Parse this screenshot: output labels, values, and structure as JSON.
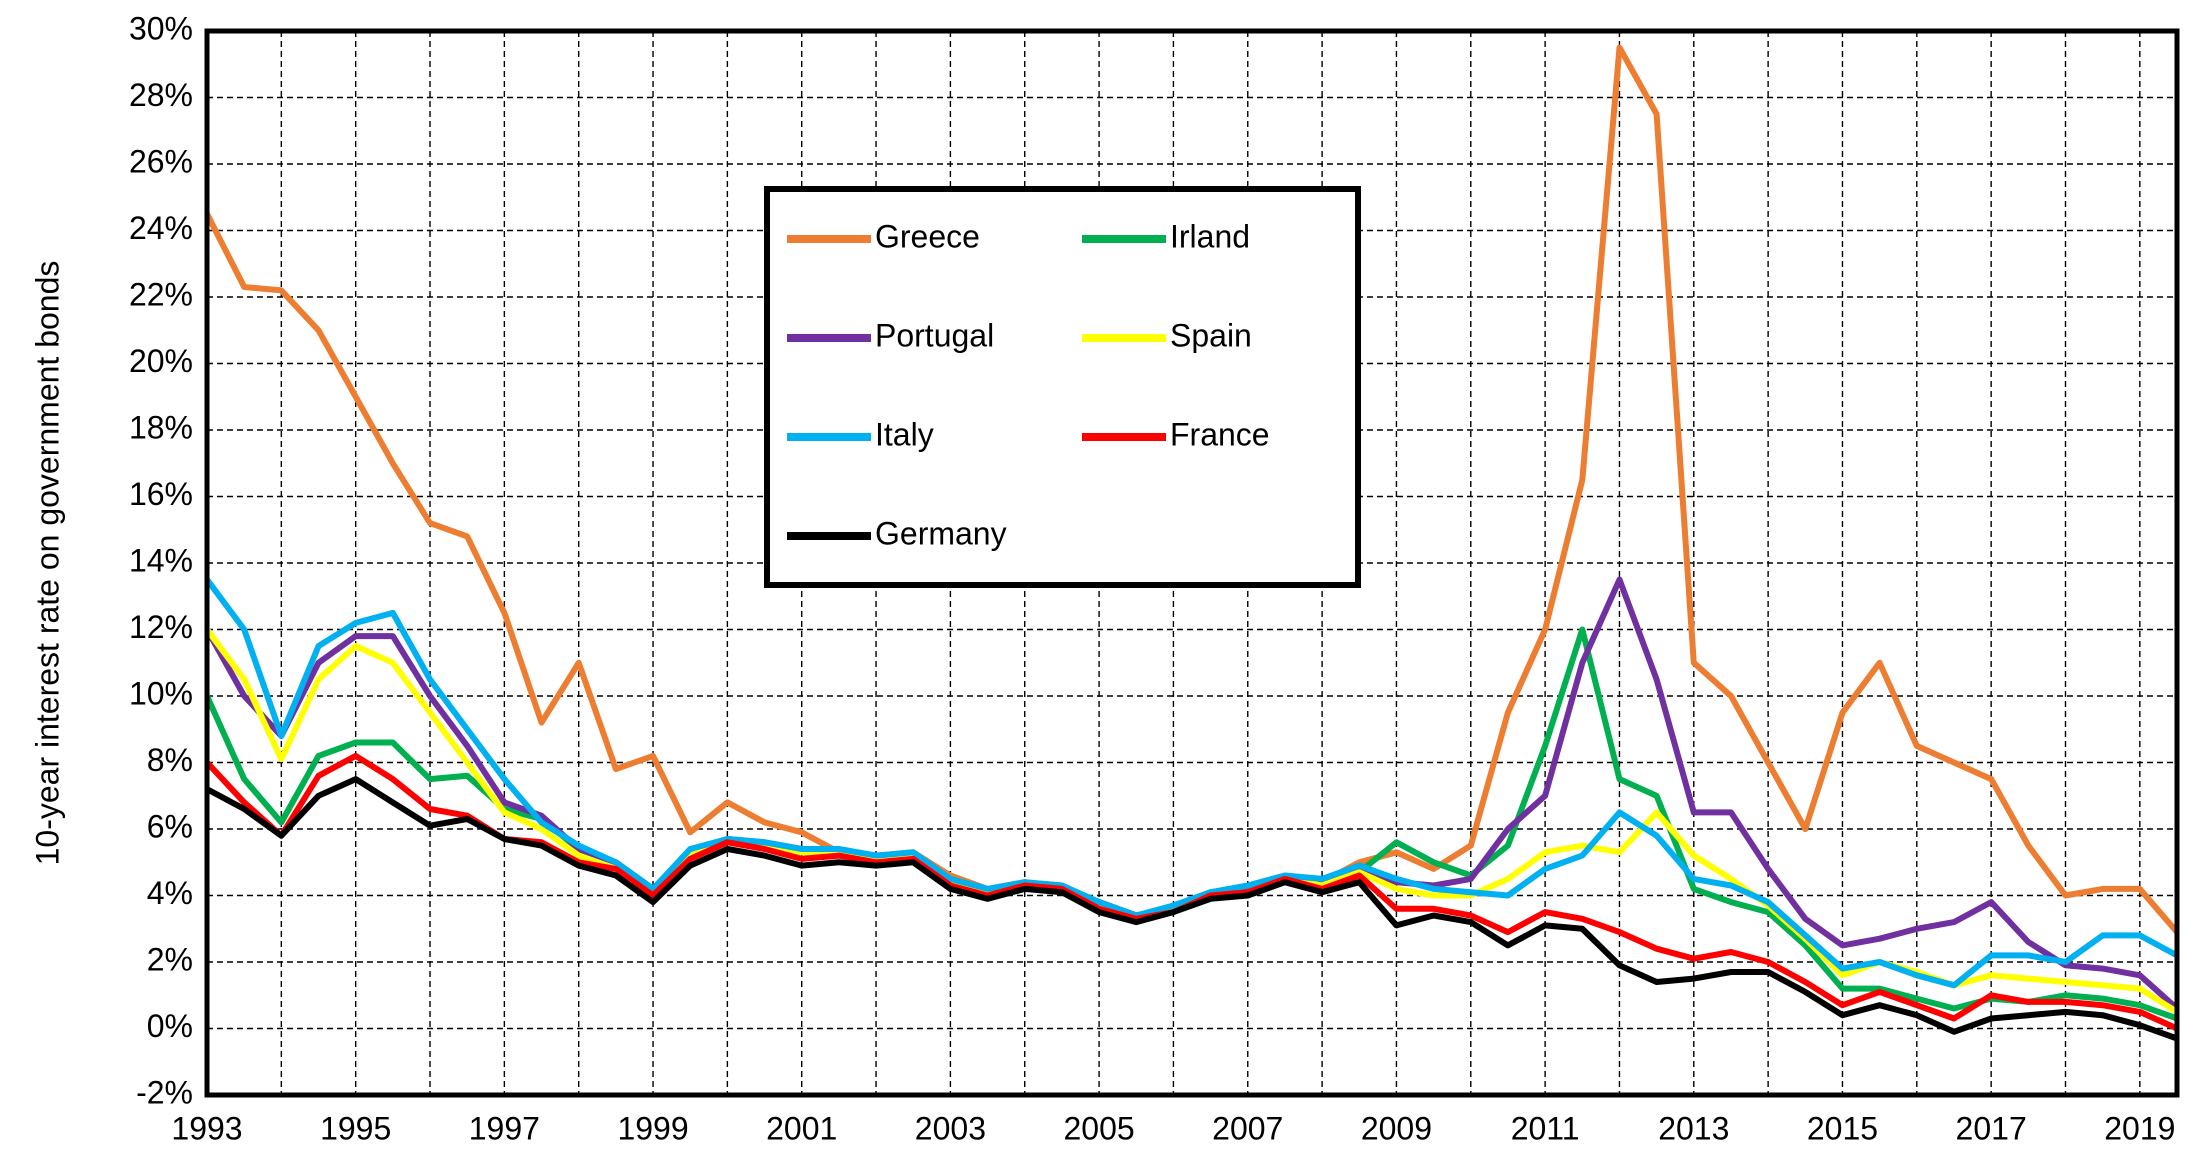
{
  "chart_data": {
    "type": "line",
    "y_label": "10-year interest rate on government bonds",
    "x": [
      1993,
      1993.5,
      1994,
      1994.5,
      1995,
      1995.5,
      1996,
      1996.5,
      1997,
      1997.5,
      1998,
      1998.5,
      1999,
      1999.5,
      2000,
      2000.5,
      2001,
      2001.5,
      2002,
      2002.5,
      2003,
      2003.5,
      2004,
      2004.5,
      2005,
      2005.5,
      2006,
      2006.5,
      2007,
      2007.5,
      2008,
      2008.5,
      2009,
      2009.5,
      2010,
      2010.5,
      2011,
      2011.5,
      2012,
      2012.5,
      2013,
      2013.5,
      2014,
      2014.5,
      2015,
      2015.5,
      2016,
      2016.5,
      2017,
      2017.5,
      2018,
      2018.5,
      2019,
      2019.5
    ],
    "series": [
      {
        "name": "Greece",
        "color": "#ed7d31",
        "values": [
          24.5,
          22.3,
          22.2,
          21,
          19,
          17,
          15.2,
          14.8,
          12.5,
          9.2,
          11,
          7.8,
          8.2,
          5.9,
          6.8,
          6.2,
          5.9,
          5.3,
          5.2,
          5.3,
          4.6,
          4.2,
          4.4,
          4.3,
          3.8,
          3.4,
          3.6,
          4.1,
          4.2,
          4.5,
          4.4,
          5.0,
          5.3,
          4.8,
          5.5,
          9.5,
          12,
          16.5,
          29.5,
          27.5,
          11,
          10,
          8,
          6,
          9.5,
          11,
          8.5,
          8,
          7.5,
          5.5,
          4,
          4.2,
          4.2,
          2.9
        ]
      },
      {
        "name": "Irland",
        "color": "#00b050",
        "values": [
          10,
          7.5,
          6.2,
          8.2,
          8.6,
          8.6,
          7.5,
          7.6,
          6.6,
          6.3,
          5.4,
          5.0,
          4.2,
          5.2,
          5.6,
          5.5,
          5.3,
          5.3,
          5.1,
          5.2,
          4.4,
          4.1,
          4.4,
          4.2,
          3.8,
          3.4,
          3.6,
          4.1,
          4.2,
          4.5,
          4.4,
          4.7,
          5.6,
          5.0,
          4.6,
          5.5,
          8.5,
          12,
          7.5,
          7,
          4.2,
          3.8,
          3.5,
          2.5,
          1.2,
          1.2,
          0.9,
          0.6,
          0.9,
          0.8,
          1.0,
          0.9,
          0.7,
          0.3
        ]
      },
      {
        "name": "Portugal",
        "color": "#7030a0",
        "values": [
          12,
          10,
          8.8,
          11,
          11.8,
          11.8,
          10,
          8.5,
          6.8,
          6.4,
          5.4,
          5.0,
          4.2,
          5.3,
          5.7,
          5.6,
          5.4,
          5.3,
          5.1,
          5.2,
          4.4,
          4.1,
          4.4,
          4.2,
          3.8,
          3.4,
          3.6,
          4.1,
          4.2,
          4.5,
          4.4,
          4.8,
          4.4,
          4.3,
          4.5,
          6,
          7,
          11,
          13.5,
          10.5,
          6.5,
          6.5,
          4.8,
          3.3,
          2.5,
          2.7,
          3.0,
          3.2,
          3.8,
          2.6,
          1.9,
          1.8,
          1.6,
          0.6
        ]
      },
      {
        "name": "Spain",
        "color": "#ffff00",
        "values": [
          12,
          10.5,
          8.1,
          10.5,
          11.5,
          11,
          9.5,
          8.0,
          6.5,
          6.0,
          5.2,
          4.8,
          4.1,
          5.2,
          5.6,
          5.5,
          5.3,
          5.3,
          5.1,
          5.2,
          4.4,
          4.1,
          4.3,
          4.2,
          3.7,
          3.3,
          3.6,
          4.0,
          4.1,
          4.5,
          4.3,
          4.7,
          4.2,
          4.0,
          4.0,
          4.5,
          5.3,
          5.5,
          5.3,
          6.5,
          5.2,
          4.5,
          3.7,
          2.7,
          1.6,
          2.0,
          1.7,
          1.3,
          1.6,
          1.5,
          1.4,
          1.3,
          1.2,
          0.5
        ]
      },
      {
        "name": "Italy",
        "color": "#00b0f0",
        "values": [
          13.5,
          12,
          8.8,
          11.5,
          12.2,
          12.5,
          10.5,
          9,
          7.5,
          6.2,
          5.5,
          5.0,
          4.2,
          5.4,
          5.7,
          5.6,
          5.4,
          5.4,
          5.2,
          5.3,
          4.5,
          4.2,
          4.4,
          4.3,
          3.8,
          3.4,
          3.7,
          4.1,
          4.3,
          4.6,
          4.5,
          4.9,
          4.5,
          4.2,
          4.1,
          4.0,
          4.8,
          5.2,
          6.5,
          5.8,
          4.5,
          4.3,
          3.8,
          2.8,
          1.8,
          2.0,
          1.6,
          1.3,
          2.2,
          2.2,
          2.0,
          2.8,
          2.8,
          2.2
        ]
      },
      {
        "name": "France",
        "color": "#ff0000",
        "values": [
          8,
          6.8,
          5.8,
          7.6,
          8.2,
          7.5,
          6.6,
          6.4,
          5.7,
          5.6,
          5.0,
          4.8,
          4.0,
          5.1,
          5.6,
          5.4,
          5.1,
          5.2,
          5.0,
          5.1,
          4.3,
          4.0,
          4.3,
          4.2,
          3.6,
          3.3,
          3.5,
          4.0,
          4.1,
          4.5,
          4.2,
          4.6,
          3.6,
          3.6,
          3.4,
          2.9,
          3.5,
          3.3,
          2.9,
          2.4,
          2.1,
          2.3,
          2.0,
          1.4,
          0.7,
          1.1,
          0.7,
          0.3,
          1.0,
          0.8,
          0.8,
          0.7,
          0.5,
          0.0
        ]
      },
      {
        "name": "Germany",
        "color": "#000000",
        "values": [
          7.2,
          6.6,
          5.8,
          7.0,
          7.5,
          6.8,
          6.1,
          6.3,
          5.7,
          5.5,
          4.9,
          4.6,
          3.8,
          4.9,
          5.4,
          5.2,
          4.9,
          5.0,
          4.9,
          5.0,
          4.2,
          3.9,
          4.2,
          4.1,
          3.5,
          3.2,
          3.5,
          3.9,
          4.0,
          4.4,
          4.1,
          4.4,
          3.1,
          3.4,
          3.2,
          2.5,
          3.1,
          3.0,
          1.9,
          1.4,
          1.5,
          1.7,
          1.7,
          1.1,
          0.4,
          0.7,
          0.4,
          -0.1,
          0.3,
          0.4,
          0.5,
          0.4,
          0.1,
          -0.3
        ]
      }
    ],
    "xlim": [
      1993,
      2019.5
    ],
    "xticks": [
      1993,
      1995,
      1997,
      1999,
      2001,
      2003,
      2005,
      2007,
      2009,
      2011,
      2013,
      2015,
      2017,
      2019
    ],
    "x_minor_grid": [
      1994,
      1996,
      1998,
      2000,
      2002,
      2004,
      2006,
      2008,
      2010,
      2012,
      2014,
      2016,
      2018
    ],
    "ylim": [
      -2,
      30
    ],
    "yticks": [
      {
        "value": -2,
        "label": "-2%"
      },
      {
        "value": 0,
        "label": "0%"
      },
      {
        "value": 2,
        "label": "2%"
      },
      {
        "value": 4,
        "label": "4%"
      },
      {
        "value": 6,
        "label": "6%"
      },
      {
        "value": 8,
        "label": "8%"
      },
      {
        "value": 10,
        "label": "10%"
      },
      {
        "value": 12,
        "label": "12%"
      },
      {
        "value": 14,
        "label": "14%"
      },
      {
        "value": 16,
        "label": "16%"
      },
      {
        "value": 18,
        "label": "18%"
      },
      {
        "value": 20,
        "label": "20%"
      },
      {
        "value": 22,
        "label": "22%"
      },
      {
        "value": 24,
        "label": "24%"
      },
      {
        "value": 26,
        "label": "26%"
      },
      {
        "value": 28,
        "label": "28%"
      },
      {
        "value": 30,
        "label": "30%"
      }
    ],
    "grid": true,
    "legend": "upper-center"
  }
}
